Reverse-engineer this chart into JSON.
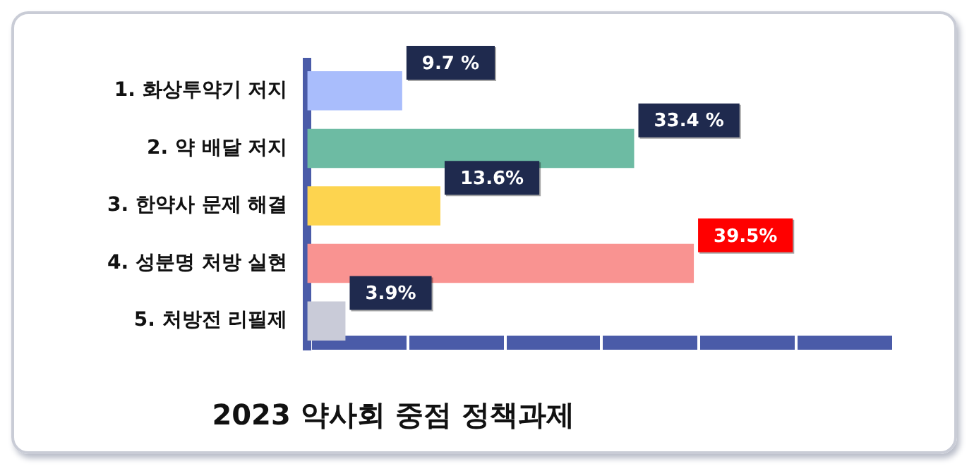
{
  "chart_data": {
    "type": "bar",
    "orientation": "horizontal",
    "title": "2023 약사회 중점 정책과제",
    "categories": [
      "1. 화상투약기 저지",
      "2. 약 배달 저지",
      "3. 한약사 문제 해결",
      "4. 성분명 처방 실현",
      "5. 처방전 리필제"
    ],
    "values": [
      9.7,
      33.4,
      13.6,
      39.5,
      3.9
    ],
    "colors": [
      "#a9bdfc",
      "#6dbba3",
      "#fdd44f",
      "#f99391",
      "#c9cbd8"
    ],
    "value_labels": [
      "9.7 %",
      "33.4 %",
      "13.6%",
      "39.5%",
      "3.9%"
    ],
    "grid": false,
    "legend": false,
    "tick_labels": "y"
  }
}
